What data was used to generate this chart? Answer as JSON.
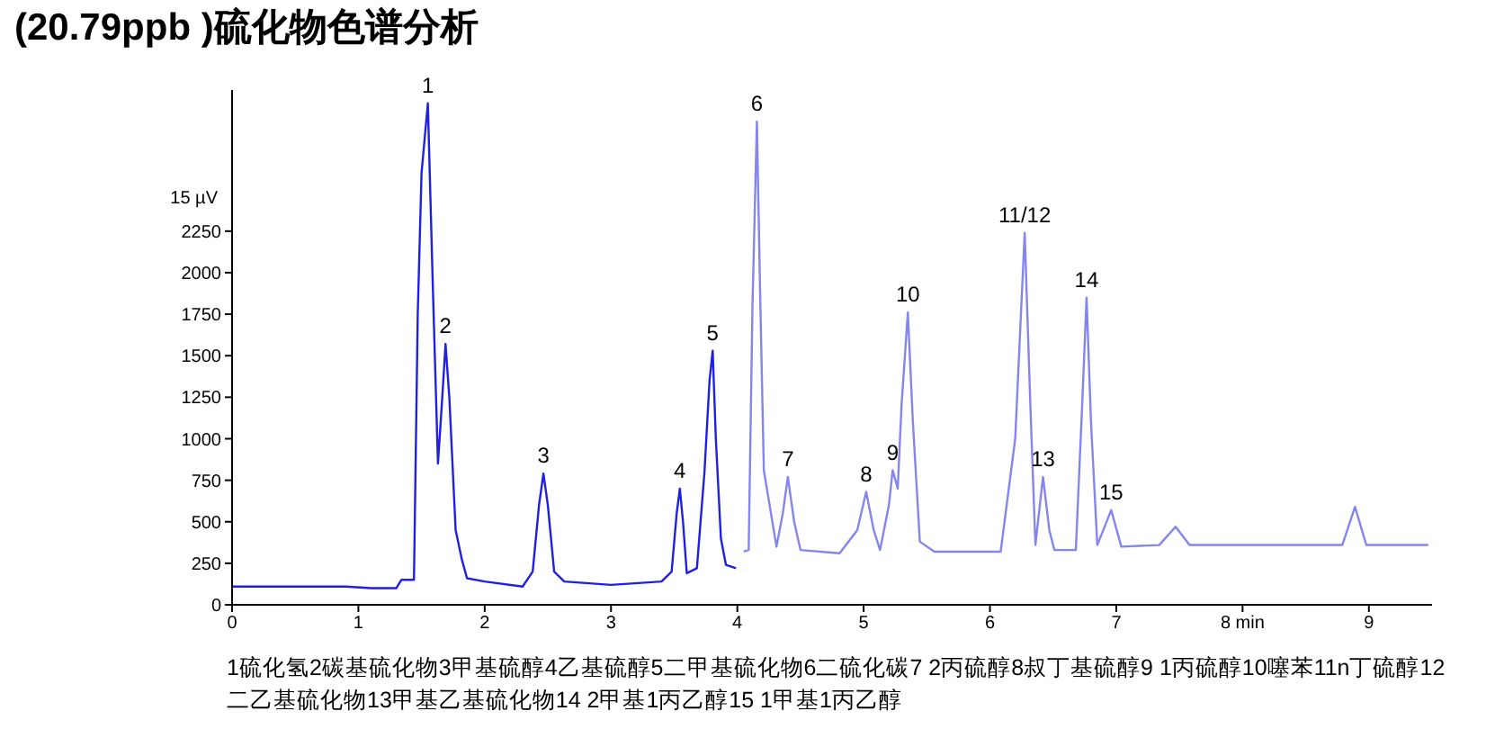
{
  "chart_data": {
    "type": "line",
    "title": "(20.79ppb )硫化物色谱分析",
    "xlim": [
      0,
      9.5
    ],
    "xticks": [
      0,
      1,
      2,
      3,
      4,
      5,
      6,
      7,
      {
        "value": 8,
        "label": "8 min"
      },
      9
    ],
    "ylabel": "15 µV",
    "ylim": [
      0,
      3100
    ],
    "yticks": [
      0,
      250,
      500,
      750,
      1000,
      1250,
      1500,
      1750,
      2000,
      2250
    ],
    "grid": false,
    "legend": false,
    "marker": "none",
    "line_style": "solid",
    "series": [
      {
        "color": "#1f1fe6",
        "x": [
          0,
          0.3,
          0.6,
          0.9,
          1.1,
          1.3,
          1.34,
          1.44,
          1.47,
          1.5,
          1.55,
          1.59,
          1.63,
          1.66,
          1.69,
          1.72,
          1.77,
          1.82,
          1.86,
          2.0,
          2.3,
          2.38,
          2.43,
          2.465,
          2.5,
          2.55,
          2.63,
          3.0,
          3.4,
          3.48,
          3.52,
          3.545,
          3.57,
          3.6,
          3.68,
          3.74,
          3.78,
          3.805,
          3.83,
          3.87,
          3.91,
          3.99
        ],
        "values": [
          110,
          110,
          110,
          110,
          100,
          100,
          150,
          150,
          1750,
          2600,
          3020,
          1900,
          850,
          1200,
          1570,
          1250,
          450,
          270,
          160,
          140,
          110,
          200,
          600,
          790,
          600,
          200,
          140,
          120,
          140,
          200,
          550,
          700,
          500,
          190,
          220,
          800,
          1350,
          1530,
          1000,
          400,
          240,
          220
        ]
      },
      {
        "color": "#8585ee",
        "x": [
          4.05,
          4.09,
          4.12,
          4.155,
          4.18,
          4.21,
          4.31,
          4.36,
          4.4,
          4.45,
          4.5,
          4.81,
          4.95,
          5.02,
          5.08,
          5.13,
          5.2,
          5.23,
          5.27,
          5.3,
          5.35,
          5.39,
          5.445,
          5.56,
          6.085,
          6.2,
          6.275,
          6.32,
          6.36,
          6.42,
          6.47,
          6.51,
          6.68,
          6.73,
          6.765,
          6.8,
          6.85,
          6.96,
          7.04,
          7.34,
          7.47,
          7.58,
          8.79,
          8.89,
          8.98,
          9.47
        ],
        "values": [
          320,
          330,
          1800,
          2910,
          1900,
          810,
          350,
          550,
          770,
          500,
          330,
          310,
          450,
          680,
          450,
          330,
          600,
          810,
          700,
          1200,
          1760,
          1100,
          380,
          320,
          320,
          1000,
          2240,
          1200,
          360,
          770,
          450,
          330,
          330,
          1200,
          1850,
          1100,
          360,
          570,
          350,
          360,
          470,
          360,
          360,
          590,
          360,
          360
        ]
      }
    ],
    "annotations": [
      {
        "text": "1",
        "x": 1.55,
        "y": 3020
      },
      {
        "text": "2",
        "x": 1.69,
        "y": 1570
      },
      {
        "text": "3",
        "x": 2.465,
        "y": 790
      },
      {
        "text": "4",
        "x": 3.545,
        "y": 700
      },
      {
        "text": "5",
        "x": 3.805,
        "y": 1530
      },
      {
        "text": "6",
        "x": 4.155,
        "y": 2910
      },
      {
        "text": "7",
        "x": 4.4,
        "y": 770
      },
      {
        "text": "8",
        "x": 5.02,
        "y": 680
      },
      {
        "text": "9",
        "x": 5.23,
        "y": 810
      },
      {
        "text": "10",
        "x": 5.35,
        "y": 1760
      },
      {
        "text": "11/12",
        "x": 6.275,
        "y": 2240
      },
      {
        "text": "13",
        "x": 6.42,
        "y": 770
      },
      {
        "text": "14",
        "x": 6.765,
        "y": 1850
      },
      {
        "text": "15",
        "x": 6.96,
        "y": 570
      },
      "1硫化氢2碳基硫化物3甲基硫醇4乙基硫醇5二甲基硫化物6二硫化碳7 2丙硫醇8叔丁基硫醇9 1丙硫醇10噻苯11n丁硫醇12二乙基硫化物13甲基乙基硫化物14 2甲基1丙乙醇15 1甲基1丙乙醇"
    ]
  }
}
